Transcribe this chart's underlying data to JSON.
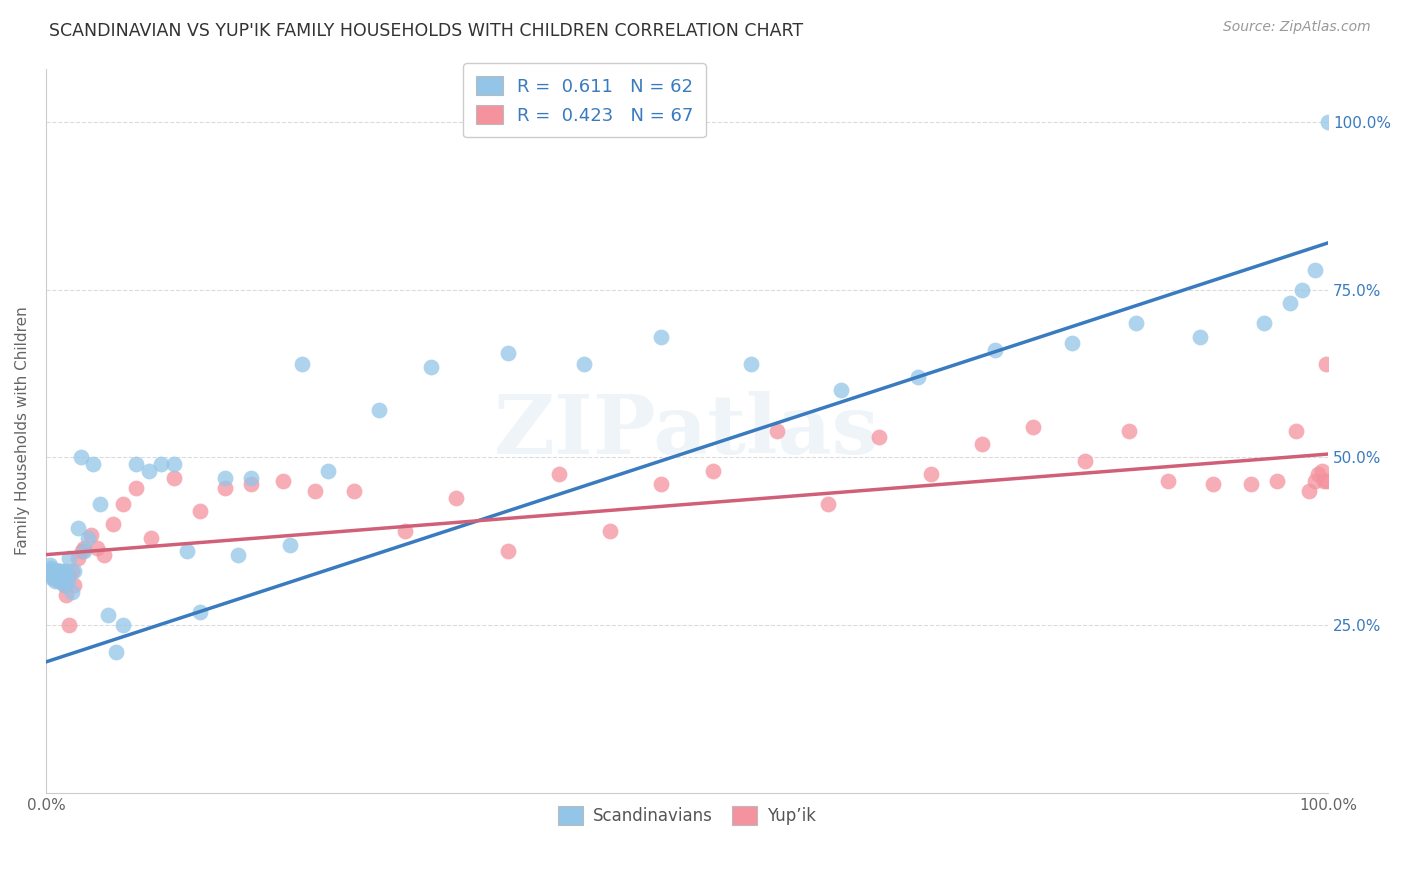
{
  "title": "SCANDINAVIAN VS YUP'IK FAMILY HOUSEHOLDS WITH CHILDREN CORRELATION CHART",
  "source": "Source: ZipAtlas.com",
  "ylabel": "Family Households with Children",
  "xlim": [
    0.0,
    1.0
  ],
  "ylim": [
    0.0,
    1.08
  ],
  "ytick_positions": [
    0.25,
    0.5,
    0.75,
    1.0
  ],
  "right_ytick_labels": [
    "25.0%",
    "50.0%",
    "75.0%",
    "100.0%"
  ],
  "watermark": "ZIPatlas",
  "legend_blue_text": "R =  0.611   N = 62",
  "legend_pink_text": "R =  0.423   N = 67",
  "legend_bottom": [
    "Scandinavians",
    "Yup’ik"
  ],
  "scandinavian_color": "#92c5e8",
  "yupik_color": "#f4929e",
  "scandinavian_line_color": "#3a7bbf",
  "yupik_line_color": "#d06078",
  "background_color": "#ffffff",
  "grid_color": "#cccccc",
  "sc_line_x0": 0.0,
  "sc_line_y0": 0.195,
  "sc_line_x1": 1.0,
  "sc_line_y1": 0.82,
  "yp_line_x0": 0.0,
  "yp_line_y0": 0.355,
  "yp_line_x1": 1.0,
  "yp_line_y1": 0.505,
  "scandinavian_x": [
    0.003,
    0.004,
    0.004,
    0.005,
    0.005,
    0.006,
    0.006,
    0.007,
    0.007,
    0.008,
    0.008,
    0.009,
    0.01,
    0.01,
    0.011,
    0.012,
    0.013,
    0.014,
    0.015,
    0.016,
    0.017,
    0.018,
    0.02,
    0.022,
    0.025,
    0.027,
    0.03,
    0.033,
    0.037,
    0.042,
    0.048,
    0.055,
    0.06,
    0.07,
    0.08,
    0.09,
    0.1,
    0.11,
    0.12,
    0.14,
    0.16,
    0.19,
    0.22,
    0.26,
    0.3,
    0.36,
    0.42,
    0.48,
    0.55,
    0.62,
    0.68,
    0.74,
    0.8,
    0.85,
    0.9,
    0.95,
    0.97,
    0.98,
    0.99,
    1.0,
    0.2,
    0.15
  ],
  "scandinavian_y": [
    0.34,
    0.335,
    0.33,
    0.32,
    0.325,
    0.33,
    0.325,
    0.315,
    0.33,
    0.325,
    0.33,
    0.33,
    0.325,
    0.33,
    0.315,
    0.32,
    0.33,
    0.31,
    0.325,
    0.33,
    0.315,
    0.35,
    0.3,
    0.33,
    0.395,
    0.5,
    0.36,
    0.38,
    0.49,
    0.43,
    0.265,
    0.21,
    0.25,
    0.49,
    0.48,
    0.49,
    0.49,
    0.36,
    0.27,
    0.47,
    0.47,
    0.37,
    0.48,
    0.57,
    0.635,
    0.655,
    0.64,
    0.68,
    0.64,
    0.6,
    0.62,
    0.66,
    0.67,
    0.7,
    0.68,
    0.7,
    0.73,
    0.75,
    0.78,
    1.0,
    0.64,
    0.355
  ],
  "yupik_x": [
    0.003,
    0.004,
    0.004,
    0.005,
    0.005,
    0.006,
    0.006,
    0.007,
    0.008,
    0.008,
    0.009,
    0.01,
    0.01,
    0.011,
    0.012,
    0.013,
    0.014,
    0.015,
    0.016,
    0.017,
    0.018,
    0.02,
    0.022,
    0.025,
    0.028,
    0.03,
    0.035,
    0.04,
    0.045,
    0.052,
    0.06,
    0.07,
    0.082,
    0.1,
    0.12,
    0.14,
    0.16,
    0.185,
    0.21,
    0.24,
    0.28,
    0.32,
    0.36,
    0.4,
    0.44,
    0.48,
    0.52,
    0.57,
    0.61,
    0.65,
    0.69,
    0.73,
    0.77,
    0.81,
    0.845,
    0.875,
    0.91,
    0.94,
    0.96,
    0.975,
    0.985,
    0.99,
    0.992,
    0.995,
    0.997,
    0.998,
    0.999
  ],
  "yupik_y": [
    0.33,
    0.33,
    0.325,
    0.325,
    0.33,
    0.32,
    0.325,
    0.33,
    0.325,
    0.33,
    0.325,
    0.33,
    0.315,
    0.32,
    0.315,
    0.325,
    0.32,
    0.31,
    0.295,
    0.325,
    0.25,
    0.33,
    0.31,
    0.35,
    0.36,
    0.365,
    0.385,
    0.365,
    0.355,
    0.4,
    0.43,
    0.455,
    0.38,
    0.47,
    0.42,
    0.455,
    0.46,
    0.465,
    0.45,
    0.45,
    0.39,
    0.44,
    0.36,
    0.475,
    0.39,
    0.46,
    0.48,
    0.54,
    0.43,
    0.53,
    0.475,
    0.52,
    0.545,
    0.495,
    0.54,
    0.465,
    0.46,
    0.46,
    0.465,
    0.54,
    0.45,
    0.465,
    0.475,
    0.48,
    0.465,
    0.64,
    0.465
  ]
}
